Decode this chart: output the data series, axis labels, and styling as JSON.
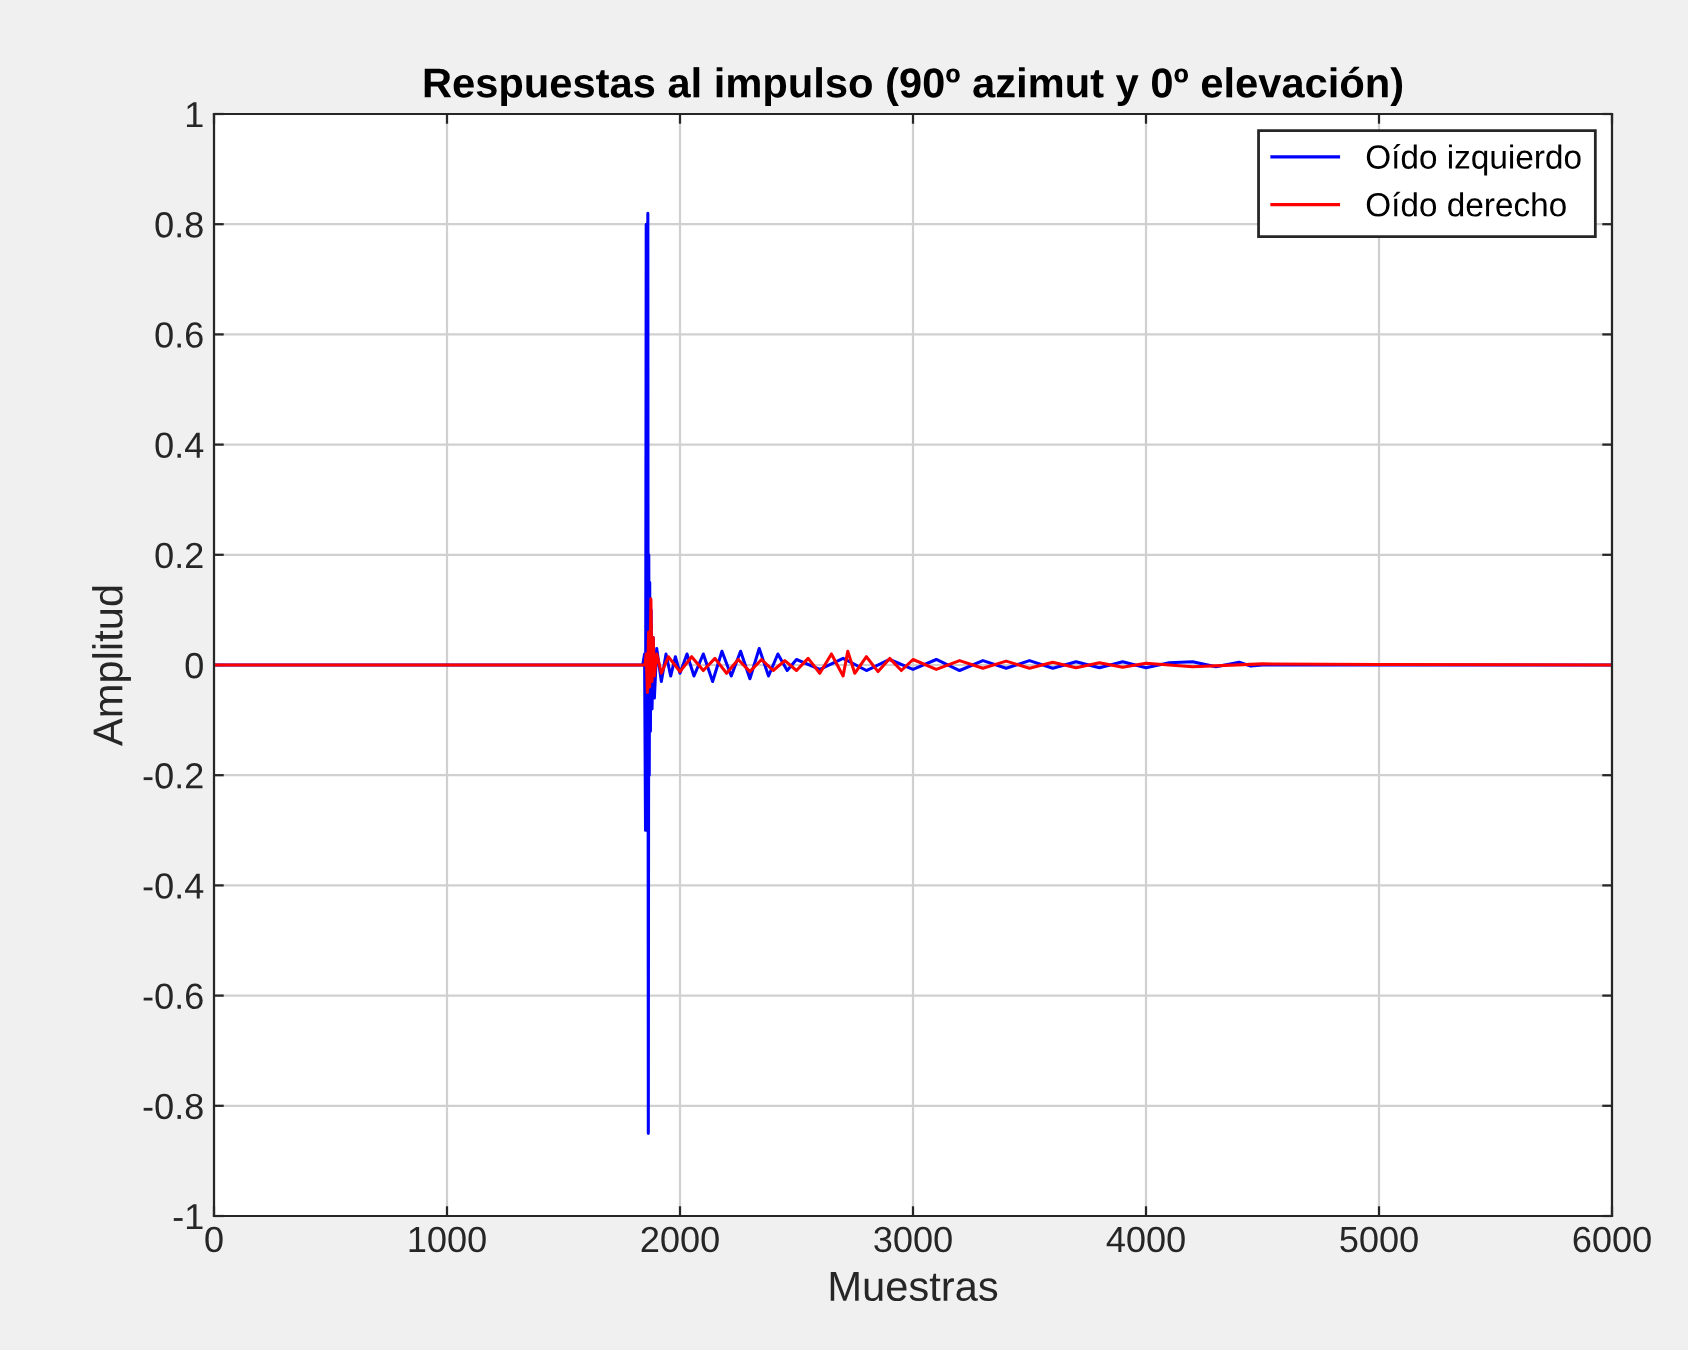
{
  "chart_data": {
    "type": "line",
    "title": "Respuestas al impulso (90º azimut y 0º elevación)",
    "xlabel": "Muestras",
    "ylabel": "Amplitud",
    "xlim": [
      0,
      6000
    ],
    "ylim": [
      -1,
      1
    ],
    "xticks": [
      0,
      1000,
      2000,
      3000,
      4000,
      5000,
      6000
    ],
    "yticks": [
      -1,
      -0.8,
      -0.6,
      -0.4,
      -0.2,
      0,
      0.2,
      0.4,
      0.6,
      0.8,
      1
    ],
    "grid": true,
    "legend": "top right",
    "line_style": "solid",
    "marker": "none",
    "series": [
      {
        "name": "Oído izquierdo",
        "color": "#0000ff",
        "x": [
          0,
          1840,
          1848,
          1852,
          1855,
          1858,
          1860,
          1862,
          1864,
          1866,
          1868,
          1870,
          1873,
          1876,
          1880,
          1885,
          1890,
          1900,
          1920,
          1940,
          1960,
          1980,
          2000,
          2030,
          2060,
          2100,
          2140,
          2180,
          2220,
          2260,
          2300,
          2340,
          2380,
          2420,
          2460,
          2500,
          2600,
          2700,
          2800,
          2900,
          3000,
          3100,
          3200,
          3300,
          3400,
          3500,
          3600,
          3700,
          3800,
          3900,
          4000,
          4100,
          4200,
          4300,
          4400,
          4450,
          4500,
          5000,
          6000
        ],
        "values": [
          0,
          0,
          0.02,
          -0.3,
          0.8,
          -0.25,
          0.2,
          0.82,
          -0.85,
          0.2,
          -0.2,
          0.15,
          -0.12,
          0.1,
          -0.08,
          0.05,
          -0.06,
          0.03,
          -0.03,
          0.02,
          -0.02,
          0.015,
          -0.015,
          0.02,
          -0.02,
          0.02,
          -0.03,
          0.025,
          -0.02,
          0.025,
          -0.025,
          0.03,
          -0.02,
          0.02,
          -0.01,
          0.01,
          -0.008,
          0.012,
          -0.01,
          0.01,
          -0.008,
          0.01,
          -0.01,
          0.008,
          -0.006,
          0.008,
          -0.006,
          0.006,
          -0.005,
          0.006,
          -0.005,
          0.004,
          0.006,
          -0.003,
          0.005,
          -0.002,
          0,
          0,
          0
        ]
      },
      {
        "name": "Oído derecho",
        "color": "#ff0000",
        "x": [
          0,
          1850,
          1855,
          1860,
          1865,
          1870,
          1875,
          1880,
          1885,
          1890,
          1900,
          1920,
          1950,
          2000,
          2050,
          2100,
          2150,
          2200,
          2250,
          2300,
          2350,
          2400,
          2450,
          2500,
          2550,
          2600,
          2650,
          2700,
          2720,
          2750,
          2800,
          2850,
          2900,
          2950,
          3000,
          3100,
          3200,
          3300,
          3400,
          3500,
          3600,
          3700,
          3800,
          3900,
          4000,
          4200,
          4500,
          5000,
          6000
        ],
        "values": [
          0,
          0,
          0.02,
          -0.05,
          0.06,
          -0.04,
          0.12,
          -0.03,
          0.05,
          -0.02,
          0.02,
          -0.015,
          0.015,
          -0.012,
          0.015,
          -0.01,
          0.012,
          -0.015,
          0.01,
          -0.012,
          0.01,
          -0.01,
          0.008,
          -0.01,
          0.012,
          -0.015,
          0.02,
          -0.02,
          0.025,
          -0.015,
          0.015,
          -0.012,
          0.012,
          -0.01,
          0.01,
          -0.008,
          0.008,
          -0.006,
          0.007,
          -0.006,
          0.005,
          -0.005,
          0.004,
          -0.004,
          0.003,
          -0.003,
          0.002,
          0.001,
          0
        ]
      }
    ]
  }
}
